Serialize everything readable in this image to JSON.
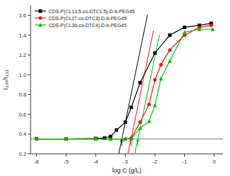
{
  "chart_data": {
    "type": "line",
    "xlabel": "log C (g/L)",
    "ylabel": "I₃₃₈/I₃₃₃",
    "xlim": [
      -6.2,
      0.3
    ],
    "ylim": [
      0.2,
      1.7
    ],
    "xticks": [
      -6,
      -5,
      -4,
      -3,
      -2,
      -1,
      0
    ],
    "yticks": [
      0.2,
      0.4,
      0.6,
      0.8,
      {
        "value": 1.0,
        "label": "1.0"
      },
      1.2,
      1.4,
      1.6
    ],
    "grid": false,
    "legend": "upper left",
    "series": [
      {
        "name": "CDS-P(CL13.5-co-DTC1.5)-D-b-PEG45",
        "color": "black",
        "marker": "square",
        "x": [
          -6.0,
          -5.0,
          -4.0,
          -3.7,
          -3.5,
          -3.3,
          -3.0,
          -2.8,
          -2.5,
          -2.0,
          -1.5,
          -1.0,
          -0.5,
          -0.1
        ],
        "values": [
          0.35,
          0.35,
          0.355,
          0.36,
          0.375,
          0.44,
          0.52,
          0.67,
          0.92,
          1.22,
          1.4,
          1.48,
          1.5,
          1.52
        ]
      },
      {
        "name": "CDS-P(CL27-co-DTC3)-D-b-PEG45",
        "color": "#ee1111",
        "marker": "circle",
        "x": [
          -6.0,
          -5.0,
          -4.0,
          -3.5,
          -3.0,
          -2.8,
          -2.5,
          -2.2,
          -2.0,
          -1.8,
          -1.5,
          -1.0,
          -0.5,
          -0.1
        ],
        "values": [
          0.35,
          0.35,
          0.35,
          0.35,
          0.35,
          0.36,
          0.52,
          0.7,
          0.95,
          1.1,
          1.25,
          1.4,
          1.48,
          1.5
        ]
      },
      {
        "name": "CDS-P(CL36-co-DTC4)-D-b-PEG45",
        "color": "#00bb00",
        "marker": "triangle",
        "x": [
          -6.0,
          -5.0,
          -4.0,
          -3.5,
          -3.0,
          -2.8,
          -2.5,
          -2.2,
          -2.0,
          -1.8,
          -1.5,
          -1.0,
          -0.5,
          -0.05
        ],
        "values": [
          0.35,
          0.35,
          0.35,
          0.35,
          0.35,
          0.355,
          0.46,
          0.53,
          0.69,
          0.96,
          1.14,
          1.43,
          1.46,
          1.46
        ]
      }
    ],
    "baseline": {
      "y": 0.35,
      "color": "#555555"
    },
    "tangents": [
      {
        "color": "black",
        "x": [
          -3.55,
          -2.25
        ],
        "y": [
          -0.2775,
          1.6075
        ]
      },
      {
        "color": "#ee1111",
        "x": [
          -3.15,
          -2.05
        ],
        "y": [
          -0.1475,
          1.4475
        ]
      },
      {
        "color": "#00bb00",
        "x": [
          -2.85,
          -1.85
        ],
        "y": [
          -0.0475,
          1.4025
        ]
      }
    ],
    "arrows": [
      {
        "color": "black",
        "x": -3.11724137931,
        "y": 0.35,
        "y_from": 0.28
      },
      {
        "color": "#ee1111",
        "x": -2.80689655172,
        "y": 0.35,
        "y_from": 0.28
      },
      {
        "color": "#00bb00",
        "x": -2.57586206897,
        "y": 0.35,
        "y_from": 0.28
      }
    ]
  }
}
